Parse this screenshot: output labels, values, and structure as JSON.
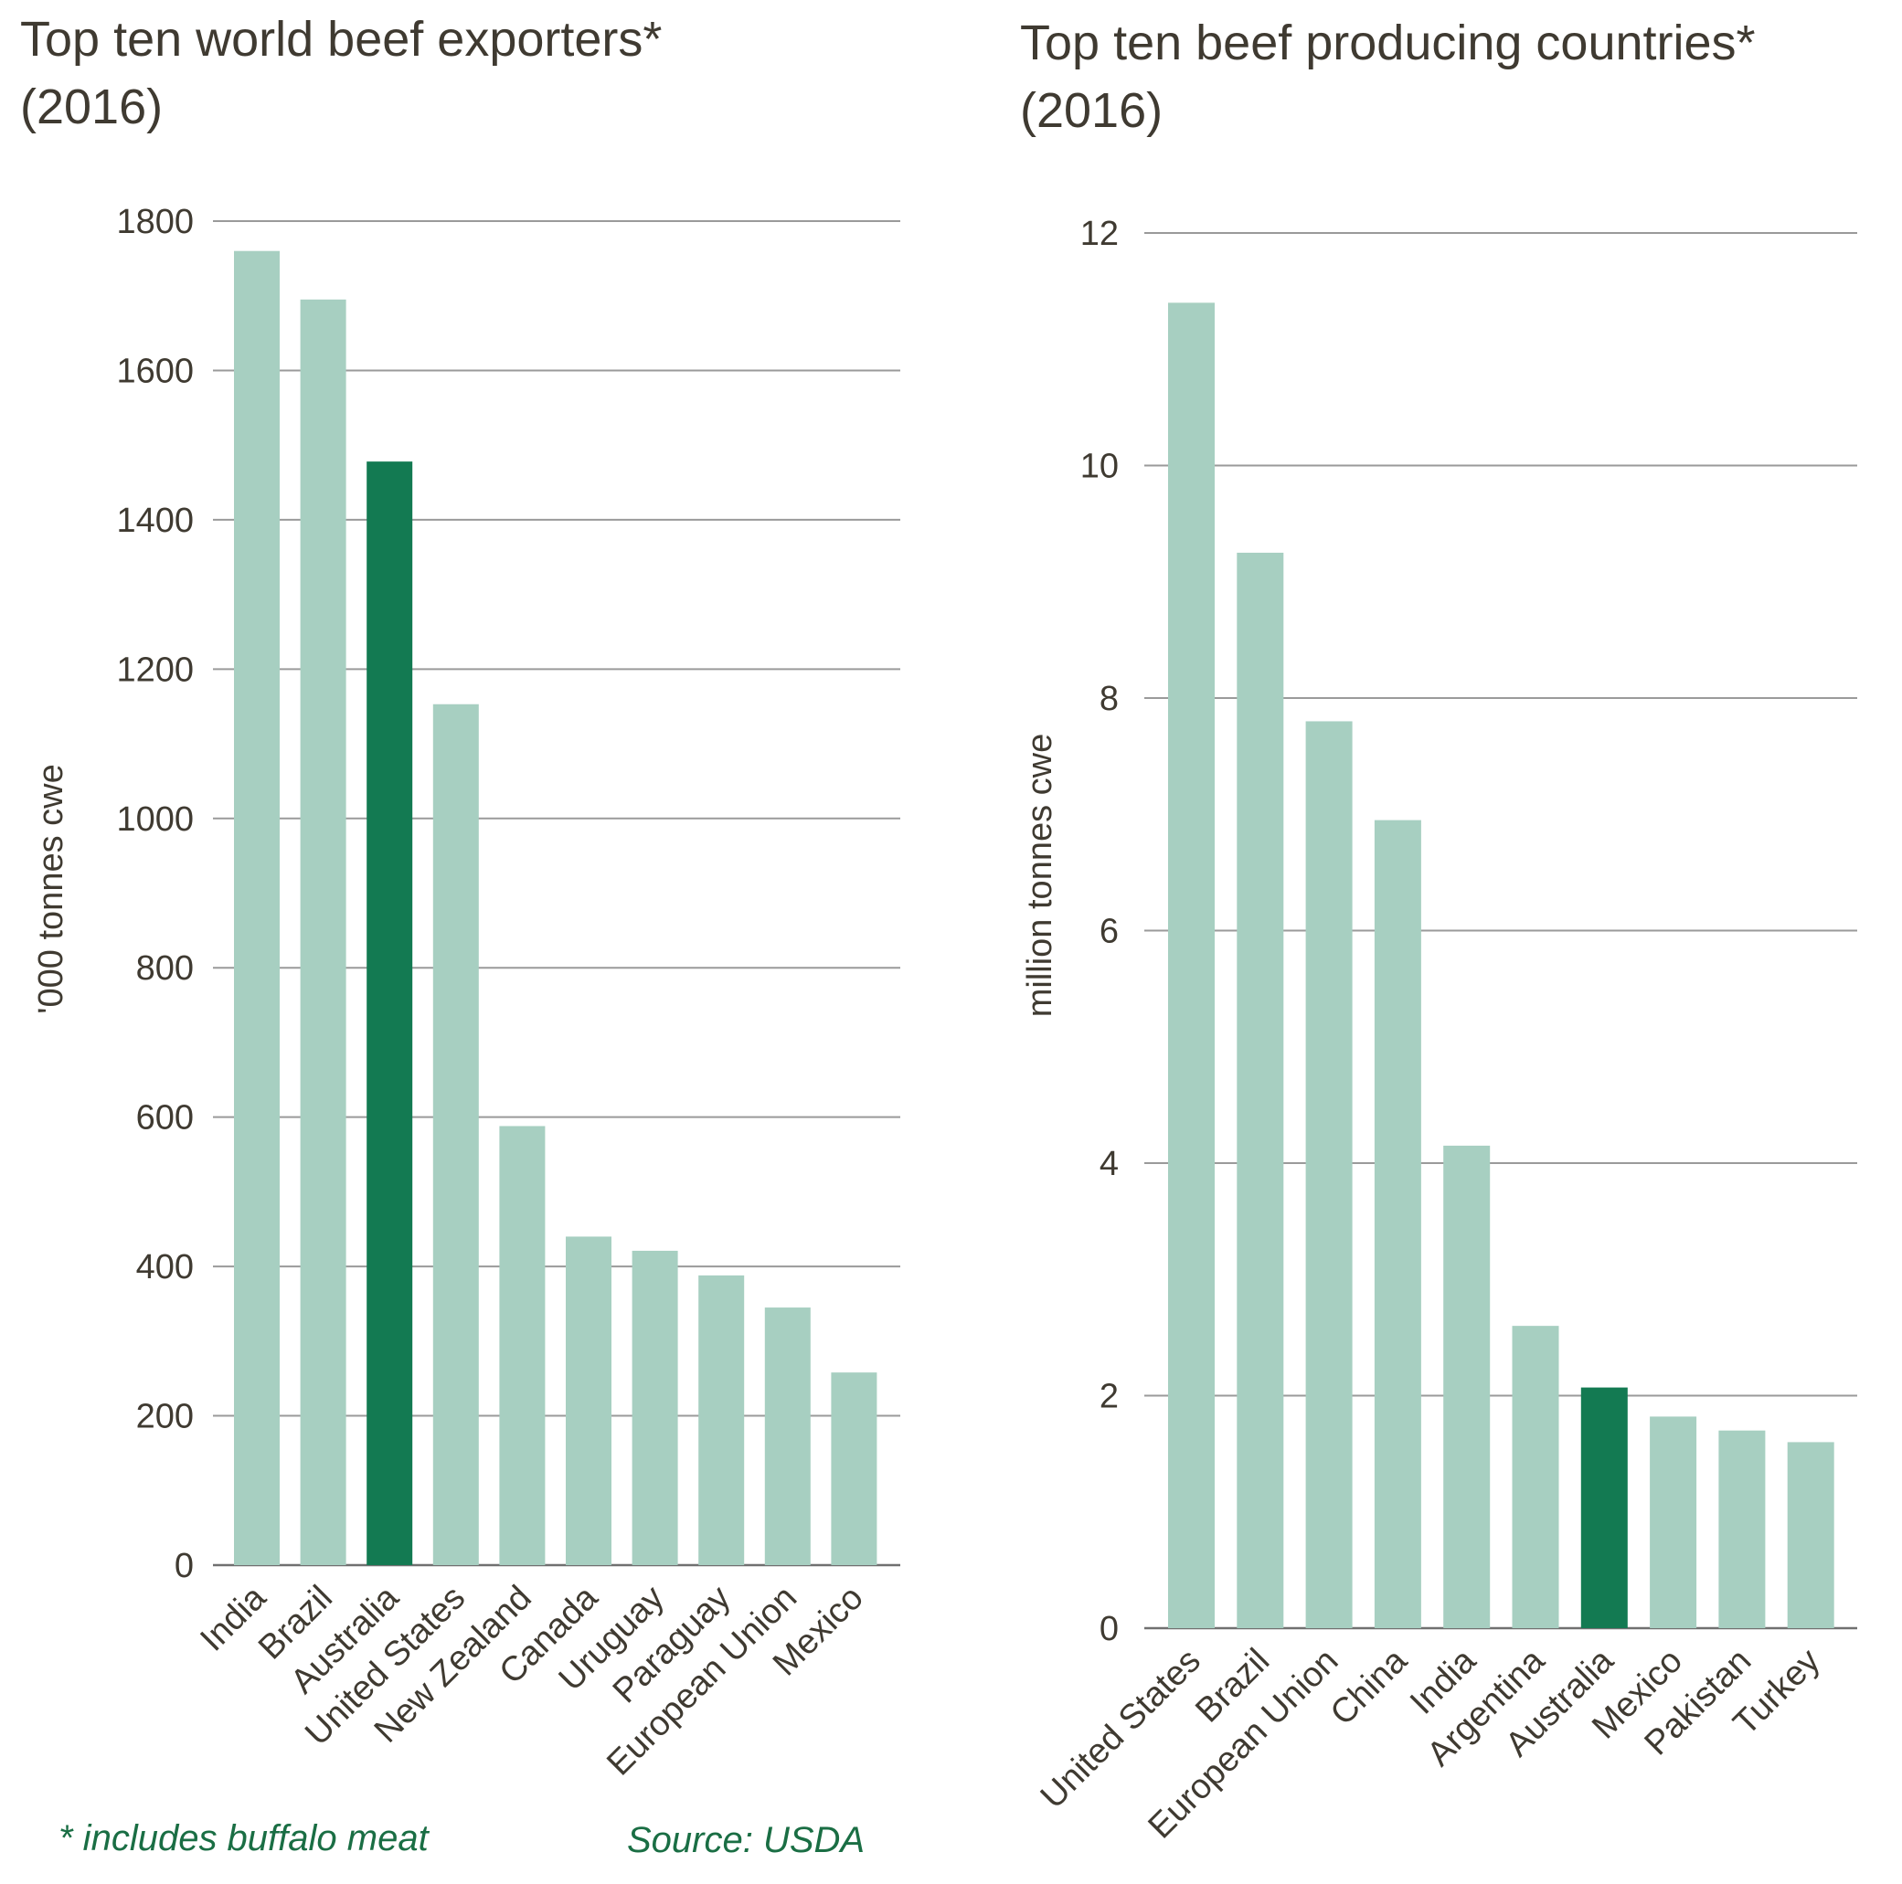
{
  "colors": {
    "bar": "#a7cfc1",
    "highlight": "#137a52",
    "grid": "#9a9a9a",
    "axis": "#707070",
    "text": "#3f3a31",
    "note": "#1a6e44"
  },
  "footnote": "* includes buffalo meat",
  "source": "Source: USDA",
  "chart_data": [
    {
      "type": "bar",
      "title": "Top ten world beef exporters*\n(2016)",
      "xlabel": "",
      "ylabel": "'000 tonnes cwe",
      "categories": [
        "India",
        "Brazil",
        "Australia",
        "United States",
        "New Zealand",
        "Canada",
        "Uruguay",
        "Paraguay",
        "European Union",
        "Mexico"
      ],
      "values": [
        1760,
        1695,
        1478,
        1153,
        588,
        440,
        421,
        388,
        345,
        258
      ],
      "highlight": "Australia",
      "ylim": [
        0,
        1800
      ],
      "yticks": [
        0,
        200,
        400,
        600,
        800,
        1000,
        1200,
        1400,
        1600,
        1800
      ],
      "grid": true
    },
    {
      "type": "bar",
      "title": "Top ten beef producing countries*\n(2016)",
      "xlabel": "",
      "ylabel": "million tonnes cwe",
      "categories": [
        "United States",
        "Brazil",
        "European Union",
        "China",
        "India",
        "Argentina",
        "Australia",
        "Mexico",
        "Pakistan",
        "Turkey"
      ],
      "values": [
        11.4,
        9.25,
        7.8,
        6.95,
        4.15,
        2.6,
        2.07,
        1.82,
        1.7,
        1.6
      ],
      "highlight": "Australia",
      "ylim": [
        0,
        12
      ],
      "yticks": [
        0,
        2,
        4,
        6,
        8,
        10,
        12
      ],
      "grid": true
    }
  ]
}
